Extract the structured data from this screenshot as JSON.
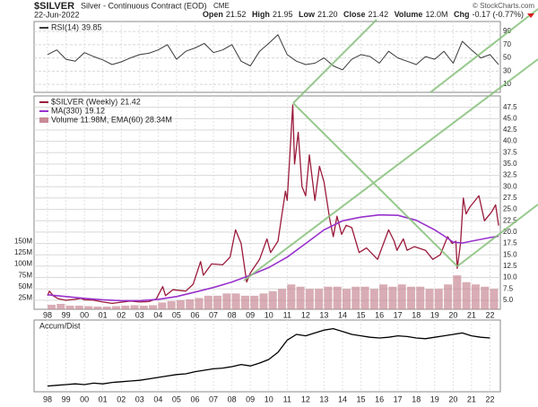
{
  "header": {
    "symbol": "$SILVER",
    "name": "Silver - Continuous Contract (EOD)",
    "exchange": "CME",
    "credit": "© StockCharts.com",
    "date": "22-Jun-2022",
    "quote": [
      {
        "label": "Open",
        "value": "21.52"
      },
      {
        "label": "High",
        "value": "21.95"
      },
      {
        "label": "Low",
        "value": "21.20"
      },
      {
        "label": "Close",
        "value": "21.42"
      },
      {
        "label": "Volume",
        "value": "12.0M"
      },
      {
        "label": "Chg",
        "value": "-0.17 (-0.77%)"
      }
    ]
  },
  "chart_data": [
    {
      "type": "line",
      "title": "RSI(14)",
      "xlim": [
        1997.27,
        2022.56
      ],
      "ylim": [
        -2,
        105
      ],
      "yticks": [
        10,
        30,
        50,
        70,
        90
      ],
      "grid": true,
      "series": [
        {
          "name": "RSI(14)",
          "color": "#3a3a3a",
          "x": [
            1998,
            1998.5,
            1999,
            1999.5,
            2000,
            2000.5,
            2001,
            2001.5,
            2002,
            2002.5,
            2003,
            2003.5,
            2004,
            2004.5,
            2005,
            2005.5,
            2006,
            2006.5,
            2007,
            2007.5,
            2008,
            2008.5,
            2009,
            2009.5,
            2010,
            2010.5,
            2011,
            2011.5,
            2012,
            2012.5,
            2013,
            2013.5,
            2014,
            2014.5,
            2015,
            2015.5,
            2016,
            2016.5,
            2017,
            2017.5,
            2018,
            2018.5,
            2019,
            2019.5,
            2020,
            2020.5,
            2021,
            2021.5,
            2022,
            2022.47
          ],
          "values": [
            55,
            62,
            48,
            45,
            58,
            52,
            47,
            40,
            44,
            50,
            55,
            57,
            62,
            70,
            48,
            60,
            65,
            72,
            58,
            62,
            70,
            45,
            38,
            60,
            72,
            85,
            55,
            45,
            40,
            42,
            50,
            38,
            32,
            48,
            55,
            52,
            42,
            60,
            50,
            45,
            40,
            52,
            48,
            60,
            42,
            75,
            62,
            50,
            55,
            39.85
          ]
        }
      ]
    },
    {
      "type": "line",
      "title": "$SILVER (Weekly)",
      "xlim": [
        1997.27,
        2022.56
      ],
      "ylim": [
        3,
        50
      ],
      "grid": true,
      "yticks": [
        {
          "value": 5,
          "label": "5.0"
        },
        7.5,
        {
          "value": 10,
          "label": "10.0"
        },
        12.5,
        {
          "value": 15,
          "label": "15.0"
        },
        17.5,
        {
          "value": 20,
          "label": "20.0"
        },
        22.5,
        {
          "value": 25,
          "label": "25.0"
        },
        27.5,
        {
          "value": 30,
          "label": "30.0"
        },
        32.5,
        {
          "value": 35,
          "label": "35.0"
        },
        37.5,
        {
          "value": 40,
          "label": "40.0"
        },
        42.5,
        {
          "value": 45,
          "label": "45.0"
        },
        47.5
      ],
      "xticks": [
        {
          "value": 1998,
          "label": "98"
        },
        {
          "value": 1999,
          "label": "99"
        },
        {
          "value": 2000,
          "label": "00"
        },
        {
          "value": 2001,
          "label": "01"
        },
        {
          "value": 2002,
          "label": "02"
        },
        {
          "value": 2003,
          "label": "03"
        },
        {
          "value": 2004,
          "label": "04"
        },
        {
          "value": 2005,
          "label": "05"
        },
        {
          "value": 2006,
          "label": "06"
        },
        {
          "value": 2007,
          "label": "07"
        },
        {
          "value": 2008,
          "label": "08"
        },
        {
          "value": 2009,
          "label": "09"
        },
        {
          "value": 2010,
          "label": "10"
        },
        {
          "value": 2011,
          "label": "11"
        },
        {
          "value": 2012,
          "label": "12"
        },
        {
          "value": 2013,
          "label": "13"
        },
        {
          "value": 2014,
          "label": "14"
        },
        {
          "value": 2015,
          "label": "15"
        },
        {
          "value": 2016,
          "label": "16"
        },
        {
          "value": 2017,
          "label": "17"
        },
        {
          "value": 2018,
          "label": "18"
        },
        {
          "value": 2019,
          "label": "19"
        },
        {
          "value": 2020,
          "label": "20"
        },
        {
          "value": 2021,
          "label": "21"
        },
        {
          "value": 2022,
          "label": "22"
        }
      ],
      "series": [
        {
          "name": "$SILVER (Weekly)",
          "color": "#9b1b3b",
          "x": [
            1998.0,
            1998.1,
            1998.3,
            1998.6,
            1999.0,
            1999.5,
            1999.8,
            2000.0,
            2000.5,
            2001.0,
            2001.5,
            2001.9,
            2002.5,
            2003.0,
            2003.5,
            2003.9,
            2004.25,
            2004.4,
            2004.8,
            2005.5,
            2005.9,
            2006.3,
            2006.45,
            2006.9,
            2007.5,
            2007.9,
            2008.2,
            2008.5,
            2008.8,
            2009.0,
            2009.5,
            2009.9,
            2010.1,
            2010.5,
            2010.9,
            2011.0,
            2011.3,
            2011.4,
            2011.6,
            2011.8,
            2012.0,
            2012.2,
            2012.5,
            2012.75,
            2013.0,
            2013.3,
            2013.5,
            2013.7,
            2013.95,
            2014.2,
            2014.5,
            2014.9,
            2015.3,
            2015.9,
            2016.5,
            2016.8,
            2016.95,
            2017.3,
            2017.5,
            2017.9,
            2018.5,
            2018.9,
            2019.3,
            2019.7,
            2019.95,
            2020.15,
            2020.22,
            2020.4,
            2020.55,
            2020.7,
            2020.9,
            2021.1,
            2021.4,
            2021.7,
            2021.9,
            2022.1,
            2022.3,
            2022.47
          ],
          "values": [
            6.0,
            7.0,
            6.0,
            5.3,
            5.0,
            5.2,
            5.4,
            5.1,
            5.0,
            4.6,
            4.3,
            4.5,
            4.8,
            4.6,
            4.7,
            5.3,
            8.0,
            6.0,
            7.3,
            7.0,
            8.5,
            13.5,
            10.5,
            13.0,
            12.8,
            14.5,
            20.5,
            17.5,
            9.0,
            11.0,
            14.0,
            18.5,
            15.5,
            18.0,
            29.0,
            27.0,
            48.0,
            35.0,
            42.0,
            30.0,
            28.0,
            37.0,
            27.0,
            34.5,
            31.0,
            23.0,
            19.0,
            23.5,
            19.5,
            21.5,
            21.0,
            15.5,
            16.5,
            14.0,
            20.5,
            18.0,
            16.0,
            18.5,
            16.0,
            16.8,
            16.0,
            14.0,
            15.0,
            19.0,
            17.5,
            18.0,
            12.0,
            17.5,
            27.5,
            24.0,
            25.5,
            26.5,
            28.0,
            22.5,
            23.5,
            24.5,
            26.0,
            21.42
          ]
        },
        {
          "name": "MA(330)",
          "color": "#9932cc",
          "x": [
            1998,
            1999,
            2000,
            2001,
            2002,
            2003,
            2004,
            2005,
            2006,
            2007,
            2008,
            2009,
            2010,
            2011,
            2012,
            2013,
            2014,
            2015,
            2016,
            2017,
            2018,
            2019,
            2019.5,
            2020,
            2020.5,
            2021,
            2021.5,
            2022,
            2022.47
          ],
          "values": [
            6.2,
            5.8,
            5.4,
            5.1,
            4.9,
            4.9,
            5.2,
            5.8,
            6.8,
            7.8,
            9.0,
            10.5,
            12.2,
            14.5,
            17.5,
            20.5,
            22.5,
            23.3,
            23.8,
            23.7,
            22.6,
            20.5,
            19.2,
            17.8,
            17.6,
            18.0,
            18.4,
            18.8,
            19.12
          ]
        }
      ],
      "volume": {
        "label": "Volume 11.98M, EMA(60) 28.34M",
        "color": "#c98a96",
        "ylim": [
          0,
          472
        ],
        "yticks": [
          {
            "value": 25,
            "label": "25M"
          },
          {
            "value": 50,
            "label": "50M"
          },
          {
            "value": 75,
            "label": "75M"
          },
          {
            "value": 100,
            "label": "100M"
          },
          {
            "value": 125,
            "label": "125M"
          },
          {
            "value": 150,
            "label": "150M"
          }
        ],
        "x": [
          1998,
          1998.5,
          1999,
          1999.5,
          2000,
          2000.5,
          2001,
          2001.5,
          2002,
          2002.5,
          2003,
          2003.5,
          2004,
          2004.5,
          2005,
          2005.5,
          2006,
          2006.5,
          2007,
          2007.5,
          2008,
          2008.5,
          2009,
          2009.5,
          2010,
          2010.5,
          2011,
          2011.5,
          2012,
          2012.5,
          2013,
          2013.5,
          2014,
          2014.5,
          2015,
          2015.5,
          2016,
          2016.5,
          2017,
          2017.5,
          2018,
          2018.5,
          2019,
          2019.5,
          2020,
          2020.5,
          2021,
          2021.5,
          2022
        ],
        "values": [
          10,
          12,
          8,
          8,
          7,
          6,
          6,
          7,
          8,
          9,
          8,
          9,
          15,
          18,
          20,
          22,
          25,
          30,
          30,
          35,
          35,
          30,
          30,
          35,
          40,
          45,
          55,
          50,
          45,
          45,
          50,
          50,
          45,
          50,
          50,
          45,
          55,
          50,
          55,
          50,
          50,
          45,
          45,
          55,
          75,
          60,
          55,
          50,
          45
        ]
      }
    },
    {
      "type": "line",
      "title": "Accum/Dist",
      "xlim": [
        1997.27,
        2022.56
      ],
      "ylim": [
        0,
        100
      ],
      "series": [
        {
          "color": "#000000",
          "x": [
            1998,
            1998.5,
            1999,
            1999.5,
            2000,
            2000.5,
            2001,
            2001.5,
            2002,
            2002.5,
            2003,
            2003.5,
            2004,
            2004.5,
            2005,
            2005.5,
            2006,
            2006.5,
            2007,
            2007.5,
            2008,
            2008.5,
            2009,
            2009.5,
            2010,
            2010.5,
            2011,
            2011.5,
            2012,
            2012.5,
            2013,
            2013.5,
            2014,
            2014.5,
            2015,
            2015.5,
            2016,
            2016.5,
            2017,
            2017.5,
            2018,
            2018.5,
            2019,
            2019.5,
            2020,
            2020.5,
            2021,
            2021.5,
            2022
          ],
          "values": [
            8,
            9,
            10,
            11,
            10,
            12,
            11,
            13,
            14,
            15,
            16,
            18,
            20,
            22,
            24,
            25,
            28,
            30,
            32,
            33,
            35,
            38,
            36,
            40,
            45,
            55,
            72,
            80,
            78,
            82,
            86,
            88,
            84,
            80,
            78,
            76,
            75,
            76,
            78,
            77,
            75,
            74,
            76,
            78,
            80,
            82,
            78,
            76,
            75
          ]
        }
      ]
    }
  ]
}
